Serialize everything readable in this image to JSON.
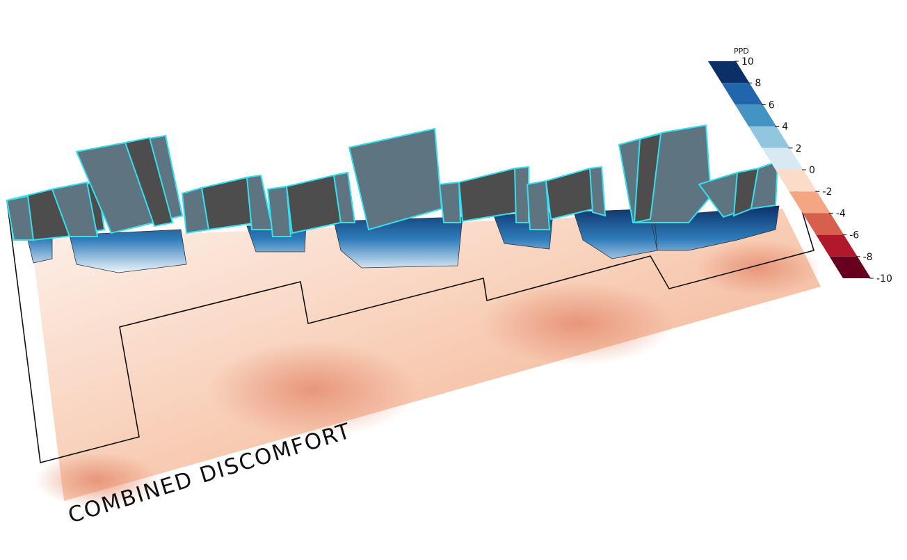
{
  "title": "COMBINED DISCOMFORT",
  "legend": {
    "title": "PPD",
    "ticks": [
      10,
      8,
      6,
      4,
      2,
      0,
      -2,
      -4,
      -6,
      -8,
      -10
    ],
    "colors": [
      "#0b3068",
      "#2166ac",
      "#4393c3",
      "#92c5de",
      "#d9e9f3",
      "#fbdcc8",
      "#f4a582",
      "#d6604d",
      "#b2182b",
      "#67001f"
    ]
  }
}
